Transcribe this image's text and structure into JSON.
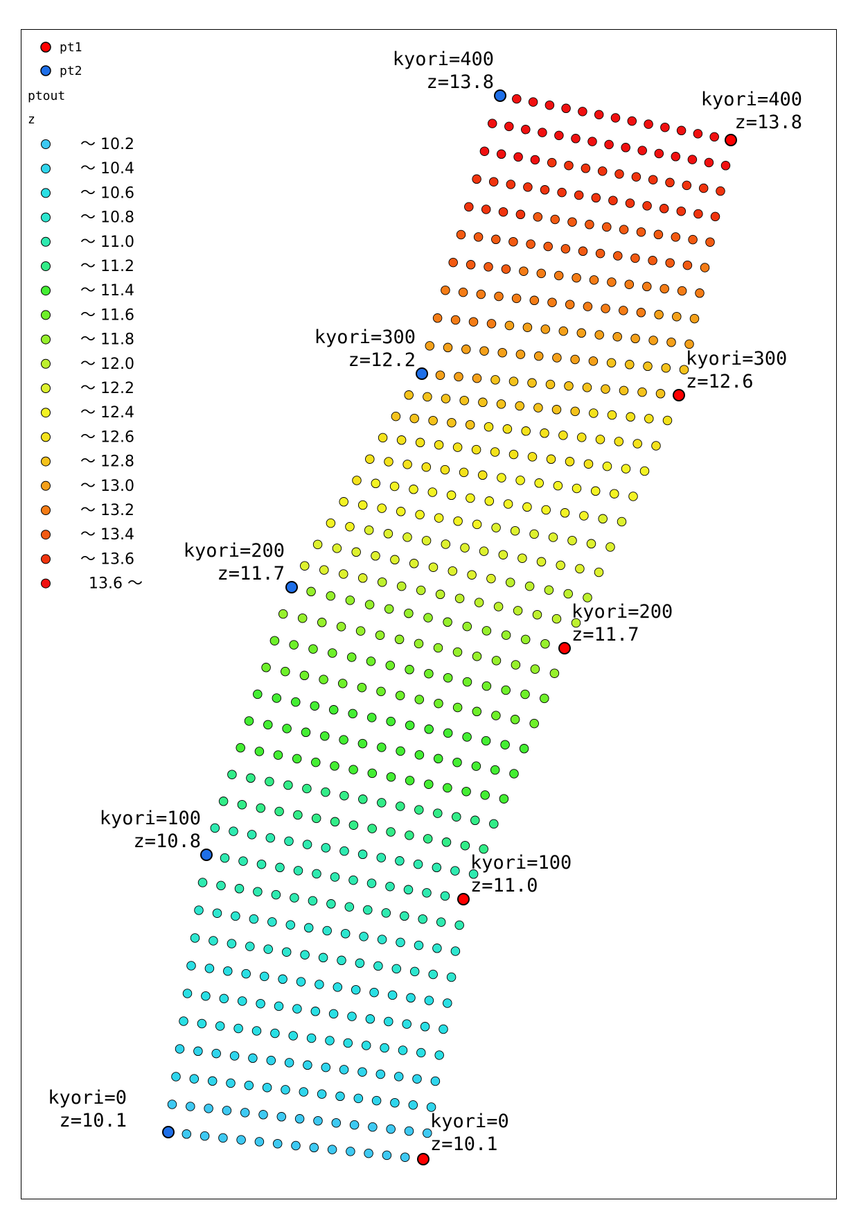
{
  "legend": {
    "pt1": {
      "label": "pt1",
      "color": "#ff0000"
    },
    "pt2": {
      "label": "pt2",
      "color": "#1e6fe8"
    },
    "ptout_label": "ptout",
    "z_label": "z",
    "classes": [
      {
        "label": "〜 10.2",
        "color": "#3ec9f2"
      },
      {
        "label": "〜 10.4",
        "color": "#30d5ec"
      },
      {
        "label": "〜 10.6",
        "color": "#2adfe4"
      },
      {
        "label": "〜 10.8",
        "color": "#2ee6cf"
      },
      {
        "label": "〜 11.0",
        "color": "#2feab0"
      },
      {
        "label": "〜 11.2",
        "color": "#33ec88"
      },
      {
        "label": "〜 11.4",
        "color": "#44ee33"
      },
      {
        "label": "〜 11.6",
        "color": "#6ef02a"
      },
      {
        "label": "〜 11.8",
        "color": "#96f02c"
      },
      {
        "label": "〜 12.0",
        "color": "#bdf02e"
      },
      {
        "label": "〜 12.2",
        "color": "#ddf12f"
      },
      {
        "label": "〜 12.4",
        "color": "#f3f324"
      },
      {
        "label": "〜 12.6",
        "color": "#f4e21c"
      },
      {
        "label": "〜 12.8",
        "color": "#f4c21c"
      },
      {
        "label": "〜 13.0",
        "color": "#f4a01a"
      },
      {
        "label": "〜 13.2",
        "color": "#f47c16"
      },
      {
        "label": "〜 13.4",
        "color": "#f25a12"
      },
      {
        "label": "〜 13.6",
        "color": "#f0340e"
      },
      {
        "label": "13.6 〜",
        "color": "#f01010"
      }
    ]
  },
  "markers": [
    {
      "series": "pt2",
      "kyori": "kyori=0",
      "z": "z=10.1"
    },
    {
      "series": "pt1",
      "kyori": "kyori=0",
      "z": "z=10.1"
    },
    {
      "series": "pt2",
      "kyori": "kyori=100",
      "z": "z=10.8"
    },
    {
      "series": "pt1",
      "kyori": "kyori=100",
      "z": "z=11.0"
    },
    {
      "series": "pt2",
      "kyori": "kyori=200",
      "z": "z=11.7"
    },
    {
      "series": "pt1",
      "kyori": "kyori=200",
      "z": "z=11.7"
    },
    {
      "series": "pt2",
      "kyori": "kyori=300",
      "z": "z=12.2"
    },
    {
      "series": "pt1",
      "kyori": "kyori=300",
      "z": "z=12.6"
    },
    {
      "series": "pt2",
      "kyori": "kyori=400",
      "z": "z=13.8"
    },
    {
      "series": "pt1",
      "kyori": "kyori=400",
      "z": "z=13.8"
    }
  ],
  "ptout": {
    "rows": 41,
    "cols": 15
  }
}
